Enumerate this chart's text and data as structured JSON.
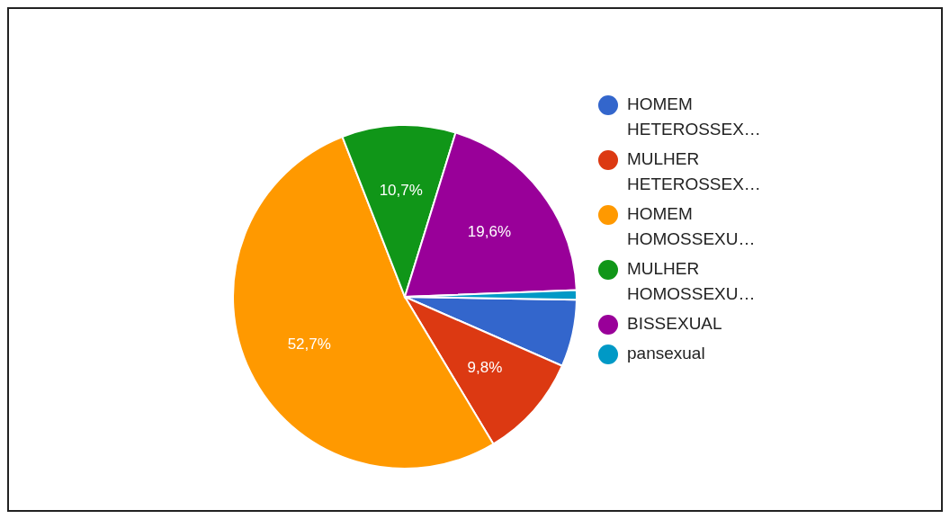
{
  "chart_data": {
    "type": "pie",
    "categories": [
      "HOMEM HETEROSSEX…",
      "MULHER HETEROSSEX…",
      "HOMEM HOMOSSEXU…",
      "MULHER HOMOSSEXU…",
      "BISSEXUAL",
      "pansexual"
    ],
    "values": [
      6.3,
      9.8,
      52.7,
      10.7,
      19.6,
      0.9
    ],
    "colors": [
      "#3366cc",
      "#dc3912",
      "#ff9900",
      "#109618",
      "#990099",
      "#0099c6"
    ],
    "value_labels": [
      null,
      "9,8%",
      "52,7%",
      "10,7%",
      "19,6%",
      null
    ],
    "legend": "right"
  }
}
